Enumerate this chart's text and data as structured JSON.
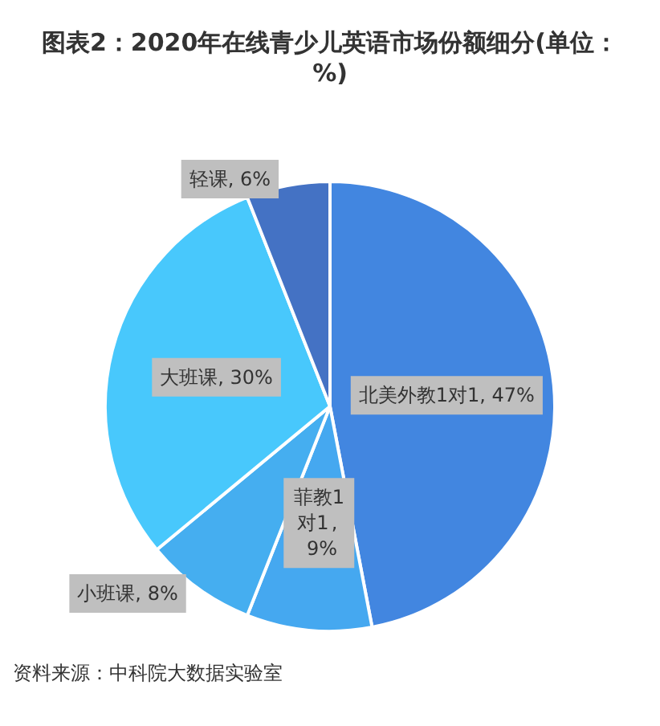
{
  "chart_data": {
    "type": "pie",
    "title": "图表2：2020年在线青少儿英语市场份额细分(单位：%)",
    "categories": [
      "北美外教1对1",
      "菲教1对1",
      "小班课",
      "大班课",
      "轻课"
    ],
    "values": [
      47,
      9,
      8,
      30,
      6
    ],
    "colors": [
      "#4286e0",
      "#45a8f0",
      "#45aef0",
      "#48c8fc",
      "#4472c4"
    ],
    "value_labels": [
      ", 47%",
      ", 9%",
      ", 8%",
      ", 30%",
      ", 6%"
    ],
    "annotations": [
      "资料来源：中科院大数据实验室"
    ],
    "legend": false
  }
}
